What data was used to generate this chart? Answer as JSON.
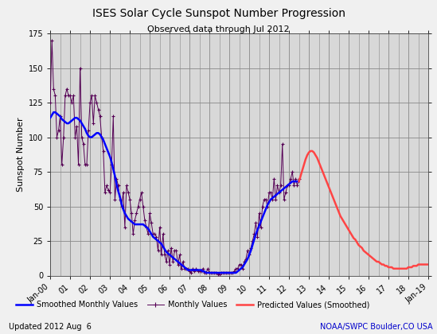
{
  "title": "ISES Solar Cycle Sunspot Number Progression",
  "subtitle": "Observed data through Jul 2012",
  "ylabel": "Sunspot Number",
  "background_color": "#f0f0f0",
  "grid_color": "#888888",
  "plot_bg_color": "#d8d8d8",
  "footer_left": "Updated 2012 Aug  6",
  "footer_right": "NOAA/SWPC Boulder,CO USA",
  "footer_right_color": "#0000cc",
  "smoothed_color": "#0000ff",
  "monthly_color": "#550055",
  "predicted_color": "#ff4444",
  "legend_smoothed": "Smoothed Monthly Values",
  "legend_monthly": "Monthly Values",
  "legend_predicted": "Predicted Values (Smoothed)",
  "ylim": [
    0,
    175
  ],
  "yticks": [
    0,
    25,
    50,
    75,
    100,
    125,
    150,
    175
  ],
  "smoothed_monthly": {
    "dates_frac": [
      2000.0,
      2000.083,
      2000.167,
      2000.25,
      2000.333,
      2000.417,
      2000.5,
      2000.583,
      2000.667,
      2000.75,
      2000.833,
      2000.917,
      2001.0,
      2001.083,
      2001.167,
      2001.25,
      2001.333,
      2001.417,
      2001.5,
      2001.583,
      2001.667,
      2001.75,
      2001.833,
      2001.917,
      2002.0,
      2002.083,
      2002.167,
      2002.25,
      2002.333,
      2002.417,
      2002.5,
      2002.583,
      2002.667,
      2002.75,
      2002.833,
      2002.917,
      2003.0,
      2003.083,
      2003.167,
      2003.25,
      2003.333,
      2003.417,
      2003.5,
      2003.583,
      2003.667,
      2003.75,
      2003.833,
      2003.917,
      2004.0,
      2004.083,
      2004.167,
      2004.25,
      2004.333,
      2004.417,
      2004.5,
      2004.583,
      2004.667,
      2004.75,
      2004.833,
      2004.917,
      2005.0,
      2005.083,
      2005.167,
      2005.25,
      2005.333,
      2005.417,
      2005.5,
      2005.583,
      2005.667,
      2005.75,
      2005.833,
      2005.917,
      2006.0,
      2006.083,
      2006.167,
      2006.25,
      2006.333,
      2006.417,
      2006.5,
      2006.583,
      2006.667,
      2006.75,
      2006.833,
      2006.917,
      2007.0,
      2007.083,
      2007.167,
      2007.25,
      2007.333,
      2007.417,
      2007.5,
      2007.583,
      2007.667,
      2007.75,
      2007.833,
      2007.917,
      2008.0,
      2008.083,
      2008.167,
      2008.25,
      2008.333,
      2008.417,
      2008.5,
      2008.583,
      2008.667,
      2008.75,
      2008.833,
      2008.917,
      2009.0,
      2009.083,
      2009.167,
      2009.25,
      2009.333,
      2009.417,
      2009.5,
      2009.583,
      2009.667,
      2009.75,
      2009.833,
      2009.917,
      2010.0,
      2010.083,
      2010.167,
      2010.25,
      2010.333,
      2010.417,
      2010.5,
      2010.583,
      2010.667,
      2010.75,
      2010.833,
      2010.917,
      2011.0,
      2011.083,
      2011.167,
      2011.25,
      2011.333,
      2011.417,
      2011.5,
      2011.583,
      2011.667,
      2011.75,
      2011.833,
      2011.917,
      2012.0,
      2012.083,
      2012.167,
      2012.25,
      2012.333,
      2012.417,
      2012.5
    ],
    "values": [
      114,
      116,
      118,
      118,
      117,
      116,
      115,
      113,
      112,
      111,
      110,
      110,
      111,
      112,
      113,
      114,
      114,
      113,
      112,
      110,
      108,
      106,
      103,
      101,
      100,
      100,
      101,
      102,
      103,
      103,
      102,
      100,
      98,
      95,
      92,
      89,
      86,
      82,
      77,
      72,
      66,
      61,
      57,
      52,
      48,
      45,
      43,
      41,
      40,
      39,
      38,
      37,
      37,
      37,
      37,
      37,
      37,
      36,
      35,
      34,
      32,
      30,
      28,
      27,
      26,
      25,
      24,
      23,
      21,
      19,
      17,
      16,
      15,
      14,
      13,
      12,
      11,
      10,
      9,
      8,
      7,
      6,
      5,
      4,
      4,
      4,
      4,
      4,
      4,
      4,
      4,
      4,
      3,
      3,
      2,
      2,
      2,
      2,
      2,
      2,
      2,
      2,
      2,
      2,
      2,
      2,
      2,
      2,
      2,
      2,
      2,
      2,
      2,
      3,
      4,
      5,
      6,
      8,
      10,
      12,
      15,
      18,
      22,
      26,
      30,
      33,
      36,
      39,
      42,
      45,
      48,
      51,
      53,
      55,
      56,
      57,
      58,
      59,
      60,
      61,
      62,
      63,
      64,
      65,
      66,
      67,
      68,
      68,
      68,
      68,
      68
    ]
  },
  "monthly": {
    "dates_frac": [
      2000.0,
      2000.083,
      2000.167,
      2000.25,
      2000.333,
      2000.417,
      2000.5,
      2000.583,
      2000.667,
      2000.75,
      2000.833,
      2000.917,
      2001.0,
      2001.083,
      2001.167,
      2001.25,
      2001.333,
      2001.417,
      2001.5,
      2001.583,
      2001.667,
      2001.75,
      2001.833,
      2001.917,
      2002.0,
      2002.083,
      2002.167,
      2002.25,
      2002.333,
      2002.417,
      2002.5,
      2002.583,
      2002.667,
      2002.75,
      2002.833,
      2002.917,
      2003.0,
      2003.083,
      2003.167,
      2003.25,
      2003.333,
      2003.417,
      2003.5,
      2003.583,
      2003.667,
      2003.75,
      2003.833,
      2003.917,
      2004.0,
      2004.083,
      2004.167,
      2004.25,
      2004.333,
      2004.417,
      2004.5,
      2004.583,
      2004.667,
      2004.75,
      2004.833,
      2004.917,
      2005.0,
      2005.083,
      2005.167,
      2005.25,
      2005.333,
      2005.417,
      2005.5,
      2005.583,
      2005.667,
      2005.75,
      2005.833,
      2005.917,
      2006.0,
      2006.083,
      2006.167,
      2006.25,
      2006.333,
      2006.417,
      2006.5,
      2006.583,
      2006.667,
      2006.75,
      2006.833,
      2006.917,
      2007.0,
      2007.083,
      2007.167,
      2007.25,
      2007.333,
      2007.417,
      2007.5,
      2007.583,
      2007.667,
      2007.75,
      2007.833,
      2007.917,
      2008.0,
      2008.083,
      2008.167,
      2008.25,
      2008.333,
      2008.417,
      2008.5,
      2008.583,
      2008.667,
      2008.75,
      2008.833,
      2008.917,
      2009.0,
      2009.083,
      2009.167,
      2009.25,
      2009.333,
      2009.417,
      2009.5,
      2009.583,
      2009.667,
      2009.75,
      2009.833,
      2009.917,
      2010.0,
      2010.083,
      2010.167,
      2010.25,
      2010.333,
      2010.417,
      2010.5,
      2010.583,
      2010.667,
      2010.75,
      2010.833,
      2010.917,
      2011.0,
      2011.083,
      2011.167,
      2011.25,
      2011.333,
      2011.417,
      2011.5,
      2011.583,
      2011.667,
      2011.75,
      2011.833,
      2011.917,
      2012.0,
      2012.083,
      2012.167,
      2012.25,
      2012.333,
      2012.417,
      2012.5
    ],
    "values": [
      125,
      170,
      135,
      130,
      100,
      105,
      115,
      80,
      100,
      130,
      135,
      130,
      130,
      125,
      130,
      100,
      108,
      80,
      150,
      100,
      95,
      80,
      80,
      105,
      125,
      130,
      110,
      130,
      125,
      120,
      115,
      100,
      90,
      60,
      65,
      62,
      60,
      80,
      115,
      55,
      70,
      65,
      55,
      50,
      60,
      35,
      65,
      60,
      55,
      45,
      30,
      40,
      45,
      50,
      55,
      60,
      50,
      40,
      35,
      30,
      45,
      38,
      30,
      30,
      28,
      18,
      35,
      15,
      30,
      15,
      10,
      18,
      8,
      20,
      10,
      18,
      18,
      8,
      15,
      5,
      10,
      5,
      5,
      5,
      3,
      2,
      5,
      3,
      5,
      3,
      3,
      3,
      5,
      2,
      2,
      5,
      2,
      2,
      2,
      2,
      2,
      1,
      1,
      2,
      2,
      2,
      2,
      2,
      2,
      2,
      2,
      3,
      5,
      5,
      8,
      8,
      5,
      10,
      12,
      18,
      15,
      20,
      25,
      30,
      38,
      28,
      45,
      35,
      50,
      55,
      55,
      50,
      60,
      60,
      55,
      70,
      55,
      65,
      60,
      65,
      95,
      55,
      60,
      65,
      65,
      70,
      75,
      65,
      70,
      65,
      70
    ]
  },
  "predicted": {
    "dates_frac": [
      2012.5,
      2012.583,
      2012.667,
      2012.75,
      2012.833,
      2012.917,
      2013.0,
      2013.083,
      2013.167,
      2013.25,
      2013.333,
      2013.417,
      2013.5,
      2013.583,
      2013.667,
      2013.75,
      2013.833,
      2013.917,
      2014.0,
      2014.083,
      2014.167,
      2014.25,
      2014.333,
      2014.417,
      2014.5,
      2014.583,
      2014.667,
      2014.75,
      2014.833,
      2014.917,
      2015.0,
      2015.083,
      2015.167,
      2015.25,
      2015.333,
      2015.417,
      2015.5,
      2015.583,
      2015.667,
      2015.75,
      2015.833,
      2015.917,
      2016.0,
      2016.083,
      2016.167,
      2016.25,
      2016.333,
      2016.417,
      2016.5,
      2016.583,
      2016.667,
      2016.75,
      2016.833,
      2016.917,
      2017.0,
      2017.083,
      2017.167,
      2017.25,
      2017.333,
      2017.417,
      2017.5,
      2017.583,
      2017.667,
      2017.75,
      2017.833,
      2017.917,
      2018.0,
      2018.083,
      2018.167,
      2018.25,
      2018.333,
      2018.417,
      2018.5,
      2018.583,
      2018.667,
      2018.75,
      2018.833,
      2018.917,
      2019.0
    ],
    "values": [
      68,
      72,
      76,
      80,
      84,
      87,
      89,
      90,
      90,
      89,
      87,
      85,
      82,
      79,
      76,
      73,
      70,
      67,
      64,
      61,
      58,
      55,
      52,
      49,
      46,
      43,
      41,
      39,
      37,
      35,
      33,
      31,
      29,
      27,
      26,
      24,
      22,
      21,
      20,
      18,
      17,
      16,
      15,
      14,
      13,
      12,
      11,
      10,
      10,
      9,
      8,
      8,
      7,
      7,
      6,
      6,
      6,
      5,
      5,
      5,
      5,
      5,
      5,
      5,
      5,
      5,
      6,
      6,
      6,
      7,
      7,
      7,
      8,
      8,
      8,
      8,
      8,
      8,
      8
    ]
  },
  "xtick_labels": [
    "Jan-00",
    "01",
    "02",
    "03",
    "04",
    "05",
    "06",
    "07",
    "08",
    "09",
    "10",
    "11",
    "12",
    "13",
    "14",
    "15",
    "16",
    "17",
    "18",
    "Jan-19"
  ],
  "xtick_positions": [
    2000.0,
    2001.0,
    2002.0,
    2003.0,
    2004.0,
    2005.0,
    2006.0,
    2007.0,
    2008.0,
    2009.0,
    2010.0,
    2011.0,
    2012.0,
    2013.0,
    2014.0,
    2015.0,
    2016.0,
    2017.0,
    2018.0,
    2019.0
  ],
  "subgrid_positions": [
    2000.5,
    2001.5,
    2002.5,
    2003.5,
    2004.5,
    2005.5,
    2006.5,
    2007.5,
    2008.5,
    2009.5,
    2010.5,
    2011.5,
    2012.5,
    2013.5,
    2014.5,
    2015.5,
    2016.5,
    2017.5,
    2018.5
  ]
}
